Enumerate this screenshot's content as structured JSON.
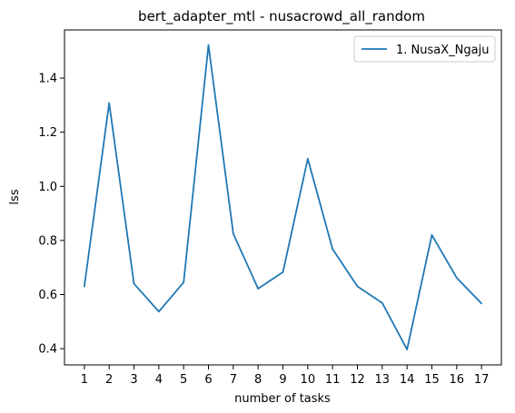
{
  "chart_data": {
    "type": "line",
    "title": "bert_adapter_mtl - nusacrowd_all_random",
    "xlabel": "number of tasks",
    "ylabel": "lss",
    "x": [
      1,
      2,
      3,
      4,
      5,
      6,
      7,
      8,
      9,
      10,
      11,
      12,
      13,
      14,
      15,
      16,
      17
    ],
    "x_tick_labels": [
      "1",
      "2",
      "3",
      "4",
      "5",
      "6",
      "7",
      "8",
      "9",
      "10",
      "11",
      "12",
      "13",
      "14",
      "15",
      "16",
      "17"
    ],
    "y_ticks": [
      0.4,
      0.6,
      0.8,
      1.0,
      1.2,
      1.4
    ],
    "y_tick_labels": [
      "0.4",
      "0.6",
      "0.8",
      "1.0",
      "1.2",
      "1.4"
    ],
    "xlim": [
      0.2,
      17.8
    ],
    "ylim": [
      0.34,
      1.578
    ],
    "grid": false,
    "legend_position": "top-right",
    "series": [
      {
        "name": "1. NusaX_Ngaju",
        "color": "#1f77b4",
        "values": [
          0.63,
          1.308,
          0.64,
          0.537,
          0.645,
          1.522,
          0.825,
          0.622,
          0.683,
          1.102,
          0.768,
          0.63,
          0.569,
          0.397,
          0.82,
          0.662,
          0.567
        ]
      }
    ]
  }
}
